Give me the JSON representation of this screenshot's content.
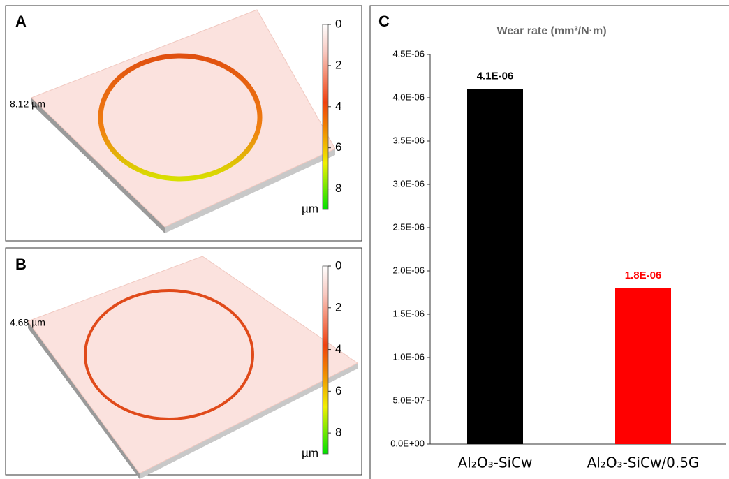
{
  "chart_data": [
    {
      "type": "surface",
      "label": "A",
      "depth_label": "8.12 µm",
      "colorbar_ticks": [
        0,
        2,
        4,
        6,
        8
      ],
      "colorbar_lim": [
        0,
        9
      ],
      "colorbar_unit": "µm"
    },
    {
      "type": "surface",
      "label": "B",
      "depth_label": "4.68 µm",
      "colorbar_ticks": [
        0,
        2,
        4,
        6,
        8
      ],
      "colorbar_lim": [
        0,
        9
      ],
      "colorbar_unit": "µm"
    },
    {
      "type": "bar",
      "label": "C",
      "title": "Wear rate (mm³/N·m)",
      "categories": [
        "Al₂O₃-SiCw",
        "Al₂O₃-SiCw/0.5G"
      ],
      "values": [
        4.1e-06,
        1.8e-06
      ],
      "value_labels": [
        "4.1E-06",
        "1.8E-06"
      ],
      "colors": [
        "#000000",
        "#ff0000"
      ],
      "ylim": [
        0,
        4.5e-06
      ],
      "yticks": [
        {
          "value": 0,
          "label": "0.0E+00"
        },
        {
          "value": 5e-07,
          "label": "5.0E-07"
        },
        {
          "value": 1e-06,
          "label": "1.0E-06"
        },
        {
          "value": 1.5e-06,
          "label": "1.5E-06"
        },
        {
          "value": 2e-06,
          "label": "2.0E-06"
        },
        {
          "value": 2.5e-06,
          "label": "2.5E-06"
        },
        {
          "value": 3e-06,
          "label": "3.0E-06"
        },
        {
          "value": 3.5e-06,
          "label": "3.5E-06"
        },
        {
          "value": 4e-06,
          "label": "4.0E-06"
        },
        {
          "value": 4.5e-06,
          "label": "4.5E-06"
        }
      ]
    }
  ]
}
